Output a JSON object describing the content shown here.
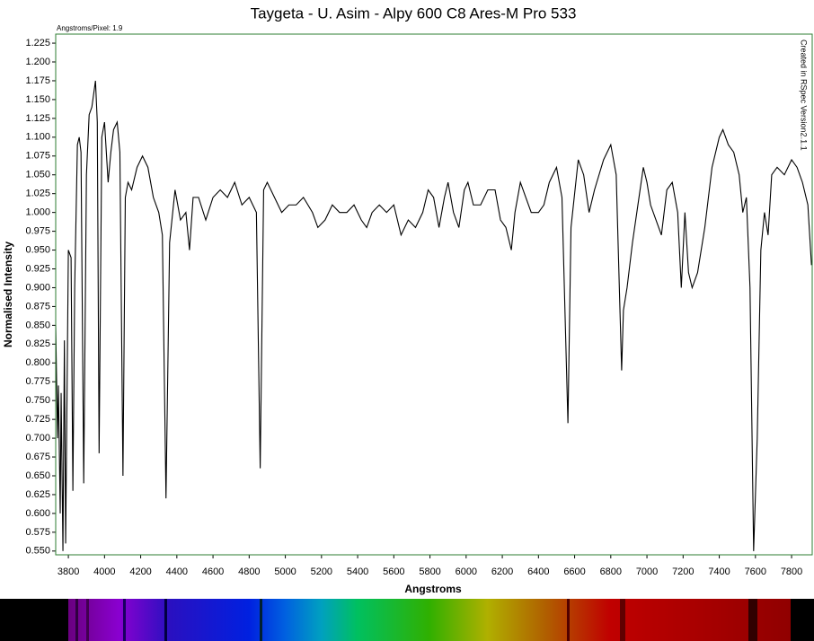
{
  "chart_data": {
    "type": "line",
    "title": "Taygeta - U. Asim - Alpy 600 C8 Ares-M Pro 533",
    "subtitle": "Angstroms/Pixel: 1.9",
    "annotation": "Created in RSpec Version2.1.1",
    "x_label": "Angstroms",
    "y_label": "Normalised Intensity",
    "color": "#000000",
    "frame_color": "#2e7d32",
    "grid": false,
    "xlim": [
      3730,
      7914
    ],
    "ylim": [
      0.545,
      1.237
    ],
    "xticks": [
      3800,
      4000,
      4200,
      4400,
      4600,
      4800,
      5000,
      5200,
      5400,
      5600,
      5800,
      6000,
      6200,
      6400,
      6600,
      6800,
      7000,
      7200,
      7400,
      7600,
      7800
    ],
    "yticks": [
      {
        "value": 0.55,
        "label": "0.550"
      },
      {
        "value": 0.575,
        "label": "0.575"
      },
      {
        "value": 0.6,
        "label": "0.600"
      },
      {
        "value": 0.625,
        "label": "0.625"
      },
      {
        "value": 0.65,
        "label": "0.650"
      },
      {
        "value": 0.675,
        "label": "0.675"
      },
      {
        "value": 0.7,
        "label": "0.700"
      },
      {
        "value": 0.725,
        "label": "0.725"
      },
      {
        "value": 0.75,
        "label": "0.750"
      },
      {
        "value": 0.775,
        "label": "0.775"
      },
      {
        "value": 0.8,
        "label": "0.800"
      },
      {
        "value": 0.825,
        "label": "0.825"
      },
      {
        "value": 0.85,
        "label": "0.850"
      },
      {
        "value": 0.875,
        "label": "0.875"
      },
      {
        "value": 0.9,
        "label": "0.900"
      },
      {
        "value": 0.925,
        "label": "0.925"
      },
      {
        "value": 0.95,
        "label": "0.950"
      },
      {
        "value": 0.975,
        "label": "0.975"
      },
      {
        "value": 1.0,
        "label": "1.000"
      },
      {
        "value": 1.025,
        "label": "1.025"
      },
      {
        "value": 1.05,
        "label": "1.050"
      },
      {
        "value": 1.075,
        "label": "1.075"
      },
      {
        "value": 1.1,
        "label": "1.100"
      },
      {
        "value": 1.125,
        "label": "1.125"
      },
      {
        "value": 1.15,
        "label": "1.150"
      },
      {
        "value": 1.175,
        "label": "1.175"
      },
      {
        "value": 1.2,
        "label": "1.200"
      },
      {
        "value": 1.225,
        "label": "1.225"
      }
    ],
    "x": [
      3730,
      3740,
      3745,
      3755,
      3760,
      3770,
      3778,
      3785,
      3800,
      3815,
      3825,
      3835,
      3850,
      3860,
      3870,
      3885,
      3900,
      3915,
      3930,
      3950,
      3960,
      3970,
      3985,
      4000,
      4020,
      4035,
      4050,
      4070,
      4085,
      4102,
      4115,
      4130,
      4150,
      4180,
      4210,
      4240,
      4270,
      4300,
      4320,
      4340,
      4360,
      4390,
      4420,
      4450,
      4470,
      4490,
      4520,
      4560,
      4600,
      4640,
      4680,
      4720,
      4760,
      4800,
      4840,
      4861,
      4880,
      4900,
      4940,
      4980,
      5020,
      5060,
      5100,
      5150,
      5180,
      5220,
      5260,
      5300,
      5340,
      5380,
      5420,
      5450,
      5480,
      5520,
      5560,
      5600,
      5640,
      5680,
      5720,
      5760,
      5790,
      5820,
      5850,
      5880,
      5900,
      5930,
      5960,
      5990,
      6010,
      6040,
      6080,
      6120,
      6160,
      6190,
      6220,
      6250,
      6270,
      6300,
      6330,
      6360,
      6400,
      6430,
      6460,
      6500,
      6530,
      6563,
      6580,
      6620,
      6650,
      6680,
      6710,
      6760,
      6800,
      6830,
      6860,
      6870,
      6890,
      6920,
      6950,
      6980,
      7000,
      7020,
      7050,
      7080,
      7110,
      7140,
      7170,
      7190,
      7210,
      7230,
      7250,
      7280,
      7320,
      7360,
      7400,
      7420,
      7450,
      7480,
      7510,
      7530,
      7550,
      7570,
      7590,
      7610,
      7630,
      7650,
      7670,
      7690,
      7720,
      7760,
      7800,
      7830,
      7860,
      7890,
      7910
    ],
    "values": [
      0.85,
      0.7,
      0.77,
      0.6,
      0.76,
      0.55,
      0.83,
      0.56,
      0.95,
      0.94,
      0.63,
      0.9,
      1.09,
      1.1,
      1.08,
      0.64,
      1.05,
      1.13,
      1.14,
      1.175,
      1.12,
      0.68,
      1.1,
      1.12,
      1.04,
      1.08,
      1.11,
      1.12,
      1.08,
      0.65,
      1.02,
      1.04,
      1.03,
      1.06,
      1.075,
      1.06,
      1.02,
      1.0,
      0.97,
      0.62,
      0.96,
      1.03,
      0.99,
      1.0,
      0.95,
      1.02,
      1.02,
      0.99,
      1.02,
      1.03,
      1.02,
      1.04,
      1.01,
      1.02,
      1.0,
      0.66,
      1.03,
      1.04,
      1.02,
      1.0,
      1.01,
      1.01,
      1.02,
      1.0,
      0.98,
      0.99,
      1.01,
      1.0,
      1.0,
      1.01,
      0.99,
      0.98,
      1.0,
      1.01,
      1.0,
      1.01,
      0.97,
      0.99,
      0.98,
      1.0,
      1.03,
      1.02,
      0.98,
      1.02,
      1.04,
      1.0,
      0.98,
      1.03,
      1.04,
      1.01,
      1.01,
      1.03,
      1.03,
      0.99,
      0.98,
      0.95,
      1.0,
      1.04,
      1.02,
      1.0,
      1.0,
      1.01,
      1.04,
      1.06,
      1.02,
      0.72,
      0.98,
      1.07,
      1.05,
      1.0,
      1.03,
      1.07,
      1.09,
      1.05,
      0.79,
      0.87,
      0.9,
      0.96,
      1.01,
      1.06,
      1.04,
      1.01,
      0.99,
      0.97,
      1.03,
      1.04,
      1.0,
      0.9,
      1.0,
      0.92,
      0.9,
      0.92,
      0.98,
      1.06,
      1.1,
      1.11,
      1.09,
      1.08,
      1.05,
      1.0,
      1.02,
      0.9,
      0.55,
      0.7,
      0.95,
      1.0,
      0.97,
      1.05,
      1.06,
      1.05,
      1.07,
      1.06,
      1.04,
      1.01,
      0.93
    ]
  }
}
